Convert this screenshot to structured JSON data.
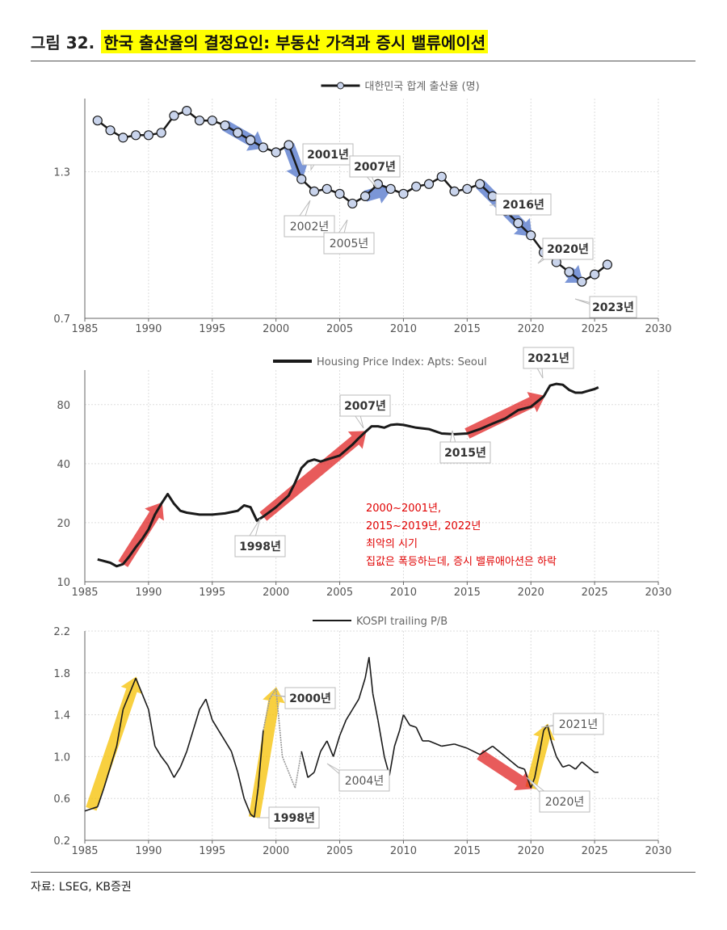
{
  "figure": {
    "number": "그림 32.",
    "title": "한국 출산율의 결정요인: 부동산 가격과 증시 밸류에이션",
    "source": "자료: LSEG, KB증권"
  },
  "colors": {
    "blue_arrow": "#4f73c9",
    "red_arrow": "#e02424",
    "yellow_arrow": "#f5c000",
    "marker_fill": "#c9d4ec",
    "line": "#1a1a1a",
    "grid": "#dddddd",
    "note_text": "#e00000"
  },
  "chart_data": [
    {
      "type": "line",
      "legend": "대한민국 합계 출산율 (명)",
      "xlim": [
        1985,
        2030
      ],
      "ylim": [
        0.7,
        1.6
      ],
      "yticks": [
        0.7,
        1.3
      ],
      "xticks": [
        1985,
        1990,
        1995,
        2000,
        2005,
        2010,
        2015,
        2020,
        2025,
        2030
      ],
      "x": [
        1986,
        1987,
        1988,
        1989,
        1990,
        1991,
        1992,
        1993,
        1994,
        1995,
        1996,
        1997,
        1998,
        1999,
        2000,
        2001,
        2002,
        2003,
        2004,
        2005,
        2006,
        2007,
        2008,
        2009,
        2010,
        2011,
        2012,
        2013,
        2014,
        2015,
        2016,
        2017,
        2018,
        2019,
        2020,
        2021,
        2022,
        2023,
        2024,
        2025,
        2026
      ],
      "y": [
        1.51,
        1.47,
        1.44,
        1.45,
        1.45,
        1.46,
        1.53,
        1.55,
        1.51,
        1.51,
        1.49,
        1.46,
        1.43,
        1.4,
        1.38,
        1.41,
        1.27,
        1.22,
        1.23,
        1.21,
        1.17,
        1.2,
        1.25,
        1.23,
        1.21,
        1.24,
        1.25,
        1.28,
        1.22,
        1.23,
        1.25,
        1.2,
        1.14,
        1.09,
        1.04,
        0.97,
        0.93,
        0.89,
        0.85,
        0.88,
        0.92
      ],
      "down_periods": [
        "1996-1999",
        "2001-2002",
        "2007-2009",
        "2016-2020",
        "2023-2024"
      ],
      "annotations": [
        {
          "label": "2001년",
          "bold": true
        },
        {
          "label": "2007년",
          "bold": true
        },
        {
          "label": "2016년",
          "bold": true
        },
        {
          "label": "2020년",
          "bold": true
        },
        {
          "label": "2023년",
          "bold": true
        },
        {
          "label": "2002년",
          "bold": false
        },
        {
          "label": "2005년",
          "bold": false
        }
      ]
    },
    {
      "type": "line",
      "legend": "Housing Price Index: Apts: Seoul",
      "scale": "log",
      "xlim": [
        1985,
        2030
      ],
      "ylim": [
        10,
        120
      ],
      "yticks": [
        10,
        20,
        40,
        80
      ],
      "xticks": [
        1985,
        1990,
        1995,
        2000,
        2005,
        2010,
        2015,
        2020,
        2025,
        2030
      ],
      "x": [
        1986,
        1987,
        1987.5,
        1988,
        1988.5,
        1989,
        1989.5,
        1990,
        1990.5,
        1991,
        1991.5,
        1992,
        1992.5,
        1993,
        1994,
        1995,
        1996,
        1997,
        1997.5,
        1998,
        1998.5,
        1999,
        2000,
        2001,
        2001.5,
        2002,
        2002.5,
        2003,
        2003.5,
        2004,
        2005,
        2006,
        2006.5,
        2007,
        2007.5,
        2008,
        2008.5,
        2009,
        2009.5,
        2010,
        2011,
        2012,
        2013,
        2014,
        2015,
        2016,
        2017,
        2018,
        2019,
        2020,
        2021,
        2021.5,
        2022,
        2022.5,
        2023,
        2023.5,
        2024,
        2024.5,
        2025,
        2025.3
      ],
      "y": [
        13.0,
        12.5,
        12.0,
        12.3,
        13.5,
        15.0,
        16.5,
        18.5,
        22.0,
        25.0,
        28.0,
        25.0,
        23.0,
        22.5,
        22.0,
        22.0,
        22.3,
        23.0,
        24.5,
        24.0,
        20.5,
        21.5,
        24.0,
        27.5,
        32.0,
        38.0,
        41.0,
        42.0,
        41.0,
        42.0,
        44.0,
        50.0,
        54.0,
        58.0,
        62.0,
        62.0,
        61.0,
        63.0,
        63.5,
        63.0,
        61.0,
        60.0,
        57.0,
        56.5,
        57.0,
        60.0,
        64.0,
        68.0,
        75.0,
        78.0,
        88.0,
        100.0,
        102.0,
        101.0,
        95.0,
        92.0,
        92.0,
        94.0,
        96.0,
        98.0
      ],
      "rise_periods": [
        "1988-1991",
        "1999-2007",
        "2015-2021"
      ],
      "annotations": [
        {
          "label": "2021년"
        },
        {
          "label": "2007년"
        },
        {
          "label": "2015년"
        },
        {
          "label": "1998년"
        }
      ],
      "note": [
        "2000~2001년,",
        "2015~2019년, 2022년",
        "최악의 시기",
        "집값은 폭등하는데, 증시 밸류애아션은 하락"
      ]
    },
    {
      "type": "line",
      "legend": "KOSPI trailing P/B",
      "xlim": [
        1985,
        2030
      ],
      "ylim": [
        0.2,
        2.2
      ],
      "yticks": [
        0.2,
        0.6,
        1.0,
        1.4,
        1.8,
        2.2
      ],
      "xticks": [
        1985,
        1990,
        1995,
        2000,
        2005,
        2010,
        2015,
        2020,
        2025,
        2030
      ],
      "x": [
        1985,
        1985.5,
        1986,
        1986.5,
        1987,
        1987.5,
        1988,
        1988.5,
        1989,
        1989.5,
        1990,
        1990.5,
        1991,
        1991.5,
        1992,
        1992.5,
        1993,
        1993.5,
        1994,
        1994.5,
        1995,
        1995.5,
        1996,
        1996.5,
        1997,
        1997.5,
        1998,
        1998.3,
        1998.6,
        1999,
        1999.5,
        2000,
        2000.5,
        2001,
        2001.5,
        2002,
        2002.5,
        2003,
        2003.5,
        2004,
        2004.5,
        2005,
        2005.5,
        2006,
        2006.5,
        2007,
        2007.3,
        2007.6,
        2008,
        2008.5,
        2008.9,
        2009.3,
        2009.7,
        2010,
        2010.5,
        2011,
        2011.5,
        2012,
        2013,
        2014,
        2015,
        2016,
        2017,
        2018,
        2019,
        2019.5,
        2020,
        2020.3,
        2020.7,
        2021,
        2021.3,
        2021.6,
        2022,
        2022.5,
        2023,
        2023.5,
        2024,
        2024.5,
        2025,
        2025.3
      ],
      "y": [
        0.48,
        0.5,
        0.52,
        0.7,
        0.9,
        1.1,
        1.45,
        1.6,
        1.75,
        1.6,
        1.45,
        1.1,
        1.0,
        0.92,
        0.8,
        0.9,
        1.05,
        1.25,
        1.45,
        1.55,
        1.35,
        1.25,
        1.15,
        1.05,
        0.85,
        0.6,
        0.45,
        0.42,
        0.7,
        1.25,
        1.55,
        1.65,
        1.0,
        0.85,
        0.7,
        1.05,
        0.8,
        0.85,
        1.05,
        1.15,
        1.0,
        1.2,
        1.35,
        1.45,
        1.55,
        1.75,
        1.95,
        1.6,
        1.35,
        1.0,
        0.82,
        1.1,
        1.25,
        1.4,
        1.3,
        1.28,
        1.15,
        1.15,
        1.1,
        1.12,
        1.08,
        1.02,
        1.1,
        1.0,
        0.9,
        0.88,
        0.7,
        0.8,
        1.05,
        1.25,
        1.3,
        1.15,
        1.0,
        0.9,
        0.92,
        0.88,
        0.95,
        0.9,
        0.85,
        0.85
      ],
      "faded_period": "1999.5-2001.5",
      "rise_periods": [
        "1985.5-1989",
        "1998.3-2000",
        "2020-2021.3"
      ],
      "fall_periods": [
        "2015.5-2020"
      ],
      "annotations": [
        {
          "label": "2000년",
          "bold": true
        },
        {
          "label": "1998년",
          "bold": true
        },
        {
          "label": "2004년",
          "bold": false
        },
        {
          "label": "2021년",
          "bold": false
        },
        {
          "label": "2020년",
          "bold": false
        }
      ]
    }
  ]
}
